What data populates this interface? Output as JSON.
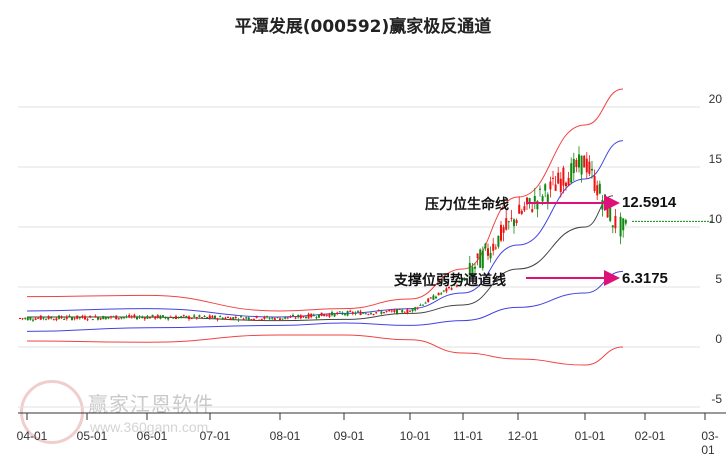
{
  "title": "平潭发展(000592)赢家极反通道",
  "watermark": {
    "brand": "赢家江恩软件",
    "url": "www.360gann.com"
  },
  "annotations": {
    "resistance_label": "压力位生命线",
    "resistance_value": "12.5914",
    "support_label": "支撑位弱势通道线",
    "support_value": "6.3175"
  },
  "y_axis": {
    "ticks": [
      "20",
      "15",
      "10",
      "5",
      "0",
      "-5"
    ]
  },
  "x_axis": {
    "ticks": [
      "04-01",
      "05-01",
      "06-01",
      "07-01",
      "08-01",
      "09-01",
      "10-01",
      "11-01",
      "12-01",
      "01-01",
      "02-01",
      "03-01"
    ]
  },
  "colors": {
    "up": "#ee1111",
    "down": "#118811",
    "outer_band": "#ee2222",
    "inner_band": "#2222dd",
    "mid_line": "#222222",
    "arrow": "#dd1177",
    "current_price_line": "#118811"
  },
  "chart_data": {
    "type": "candlestick",
    "title": "平潭发展(000592)赢家极反通道",
    "xlabel": "",
    "ylabel": "",
    "ylim": [
      -5,
      22
    ],
    "grid": true,
    "x_ticks": [
      "04-01",
      "05-01",
      "06-01",
      "07-01",
      "08-01",
      "09-01",
      "10-01",
      "11-01",
      "12-01",
      "01-01",
      "02-01",
      "03-01"
    ],
    "y_ticks": [
      20,
      15,
      10,
      5,
      0,
      -5
    ],
    "series": [
      {
        "name": "outer_upper_band",
        "color": "red",
        "x": [
          "04-01",
          "06-01",
          "08-01",
          "09-01",
          "10-01",
          "11-01",
          "12-01",
          "01-01",
          "01-20"
        ],
        "values": [
          4.2,
          4.3,
          3.0,
          3.2,
          4.0,
          6.5,
          12.5,
          18.5,
          21.5
        ]
      },
      {
        "name": "inner_upper_band",
        "color": "blue",
        "x": [
          "04-01",
          "06-01",
          "08-01",
          "09-01",
          "10-01",
          "11-01",
          "12-01",
          "01-01",
          "01-20"
        ],
        "values": [
          3.0,
          3.2,
          2.5,
          2.8,
          3.2,
          4.5,
          8.5,
          14.0,
          17.2
        ]
      },
      {
        "name": "middle_line",
        "color": "black",
        "x": [
          "04-01",
          "06-01",
          "08-01",
          "09-01",
          "10-01",
          "11-01",
          "12-01",
          "01-01",
          "01-15"
        ],
        "values": [
          2.5,
          2.5,
          2.2,
          2.3,
          2.8,
          3.5,
          6.5,
          10.0,
          12.6
        ]
      },
      {
        "name": "inner_lower_band",
        "color": "blue",
        "x": [
          "04-01",
          "06-01",
          "08-01",
          "09-01",
          "10-01",
          "11-01",
          "12-01",
          "01-01",
          "01-20"
        ],
        "values": [
          1.3,
          1.6,
          1.8,
          2.0,
          1.8,
          2.2,
          3.3,
          4.5,
          6.3
        ]
      },
      {
        "name": "outer_lower_band",
        "color": "red",
        "x": [
          "04-01",
          "06-01",
          "08-01",
          "09-01",
          "10-01",
          "11-01",
          "12-01",
          "01-01",
          "01-20"
        ],
        "values": [
          0.5,
          0.4,
          1.0,
          1.0,
          0.6,
          -0.5,
          -1.0,
          -1.5,
          0.0
        ]
      },
      {
        "name": "price_close",
        "x": [
          "04-01",
          "06-01",
          "08-01",
          "09-01",
          "10-01",
          "11-01",
          "12-01",
          "01-01",
          "01-15",
          "01-20"
        ],
        "values": [
          2.4,
          2.5,
          2.4,
          2.8,
          3.0,
          5.5,
          11.0,
          15.5,
          10.5,
          9.8
        ]
      }
    ],
    "annotations": [
      {
        "text": "压力位生命线",
        "value": 12.5914
      },
      {
        "text": "支撑位弱势通道线",
        "value": 6.3175
      }
    ],
    "reference_line": {
      "value": 10.3,
      "style": "dashed",
      "color": "green"
    }
  }
}
